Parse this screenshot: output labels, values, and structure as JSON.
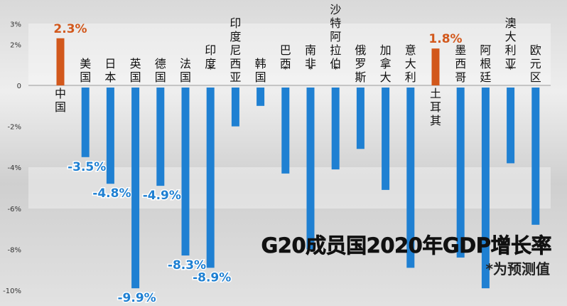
{
  "chart_data": {
    "type": "bar",
    "title": "G20成员国2020年GDP增长率",
    "note": "*为预测值",
    "ylabel": "",
    "xlabel": "",
    "ylim": [
      -10.5,
      3
    ],
    "yticks": [
      3,
      2,
      0,
      -2,
      -4,
      -6,
      -8,
      -10
    ],
    "ytick_labels": [
      "3%",
      "2%",
      "0",
      "-2%",
      "-4%",
      "-6%",
      "-8%",
      "-10%"
    ],
    "categories": [
      "中国",
      "美国",
      "日本",
      "英国",
      "德国",
      "法国",
      "印度*",
      "印度尼西亚",
      "韩国",
      "巴西*",
      "南非*",
      "沙特阿拉伯*",
      "俄罗斯",
      "加拿大",
      "意大利",
      "土耳其",
      "墨西哥",
      "阿根廷",
      "澳大利亚*",
      "欧元区"
    ],
    "values": [
      2.3,
      -3.5,
      -4.8,
      -9.9,
      -4.9,
      -8.3,
      -8.9,
      -2.0,
      -1.0,
      -4.3,
      -8.0,
      -4.1,
      -3.1,
      -5.1,
      -8.9,
      1.8,
      -8.4,
      -9.9,
      -3.8,
      -6.8
    ],
    "data_labels": [
      "2.3%",
      "-3.5%",
      "-4.8%",
      "-9.9%",
      "-4.9%",
      "-8.3%",
      "-8.9%",
      "",
      "",
      "",
      "",
      "",
      "",
      "",
      "",
      "1.8%",
      "",
      "",
      "",
      ""
    ],
    "colors": {
      "positive": "#d2581c",
      "negative": "#1f80d2",
      "axis": "#555555"
    }
  }
}
